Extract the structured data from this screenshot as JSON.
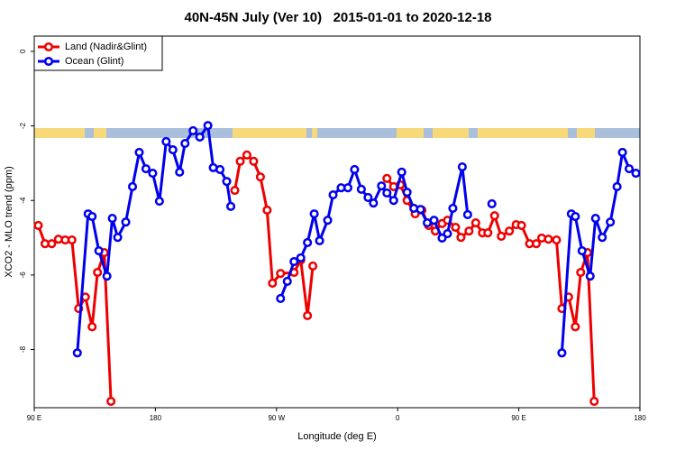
{
  "chart_data": {
    "type": "line",
    "title": "40N-45N July (Ver 10)   2015-01-01 to 2020-12-18",
    "x_label": "Longitude (deg E)",
    "y_label": "XCO2 - MLO trend (ppm)",
    "xlim": [
      90,
      540
    ],
    "ylim": [
      -9.56,
      0.41
    ],
    "xticks": [
      {
        "value": 90,
        "label": "90 E"
      },
      {
        "value": 180,
        "label": "180"
      },
      {
        "value": 270,
        "label": "90 W"
      },
      {
        "value": 360,
        "label": "0"
      },
      {
        "value": 450,
        "label": "90 E"
      },
      {
        "value": 540,
        "label": "180"
      }
    ],
    "yticks": [
      0,
      -2,
      -4,
      -6,
      -8
    ],
    "legend": "top-left",
    "series": [
      {
        "name": "Land (Nadir&Glint)",
        "color": "#ee0000",
        "x": [
          93,
          98,
          103,
          108,
          113,
          118,
          123,
          128,
          133,
          137,
          142,
          147,
          null,
          239,
          243,
          248,
          253,
          258,
          263,
          267,
          273,
          283,
          288,
          293,
          297,
          null,
          352,
          357,
          362,
          367,
          373,
          378,
          383,
          388,
          393,
          397,
          403,
          407,
          413,
          418,
          423,
          427,
          432,
          437,
          443,
          448,
          452,
          458,
          463,
          467,
          472,
          478,
          482,
          487,
          492,
          496,
          501,
          506
        ],
        "values": [
          -4.67,
          -5.16,
          -5.16,
          -5.04,
          -5.06,
          -5.06,
          -6.9,
          -6.59,
          -7.39,
          -5.93,
          -5.4,
          -9.39,
          null,
          -3.73,
          -2.95,
          -2.78,
          -2.95,
          -3.37,
          -4.26,
          -6.22,
          -5.96,
          -5.93,
          -5.6,
          -7.09,
          -5.76,
          null,
          -3.41,
          -3.63,
          -3.58,
          -4.0,
          -4.36,
          -4.26,
          -4.67,
          -4.82,
          -4.62,
          -4.53,
          -4.72,
          -4.99,
          -4.82,
          -4.6,
          -4.87,
          -4.87,
          -4.41,
          -4.96,
          -4.82,
          -4.65,
          -4.67,
          -5.16,
          -5.16,
          -5.01,
          -5.04,
          -5.06,
          -6.9,
          -6.59,
          -7.39,
          -5.93,
          -5.4,
          -9.39
        ]
      },
      {
        "name": "Ocean (Glint)",
        "color": "#0000ee",
        "x": [
          122,
          130,
          133,
          138,
          144,
          148,
          152,
          158,
          163,
          168,
          173,
          178,
          183,
          188,
          193,
          198,
          202,
          208,
          213,
          219,
          223,
          228,
          233,
          236,
          null,
          273,
          278,
          283,
          288,
          293,
          298,
          302,
          308,
          312,
          318,
          323,
          328,
          333,
          338,
          342,
          348,
          352,
          357,
          363,
          367,
          372,
          377,
          382,
          387,
          393,
          397,
          401,
          408,
          412,
          null,
          430,
          null,
          482,
          489,
          492,
          497,
          503,
          507,
          512,
          518,
          523,
          527,
          532,
          537
        ],
        "values": [
          -8.09,
          -4.36,
          -4.43,
          -5.35,
          -6.03,
          -4.48,
          -4.99,
          -4.58,
          -3.63,
          -2.71,
          -3.15,
          -3.27,
          -4.02,
          -2.42,
          -2.64,
          -3.24,
          -2.47,
          -2.13,
          -2.3,
          -1.99,
          -3.12,
          -3.17,
          -3.49,
          -4.16,
          null,
          -6.63,
          -6.17,
          -5.64,
          -5.54,
          -5.13,
          -4.36,
          -5.08,
          -4.53,
          -3.85,
          -3.66,
          -3.66,
          -3.17,
          -3.7,
          -3.92,
          -4.07,
          -3.61,
          -3.8,
          -4.0,
          -3.24,
          -3.78,
          -4.21,
          -4.24,
          -4.6,
          -4.53,
          -5.01,
          -4.89,
          -4.21,
          -3.1,
          -4.38,
          null,
          -4.09,
          null,
          -8.09,
          -4.36,
          -4.43,
          -5.35,
          -6.03,
          -4.48,
          -4.99,
          -4.58,
          -3.63,
          -2.71,
          -3.15,
          -3.27
        ]
      }
    ]
  }
}
